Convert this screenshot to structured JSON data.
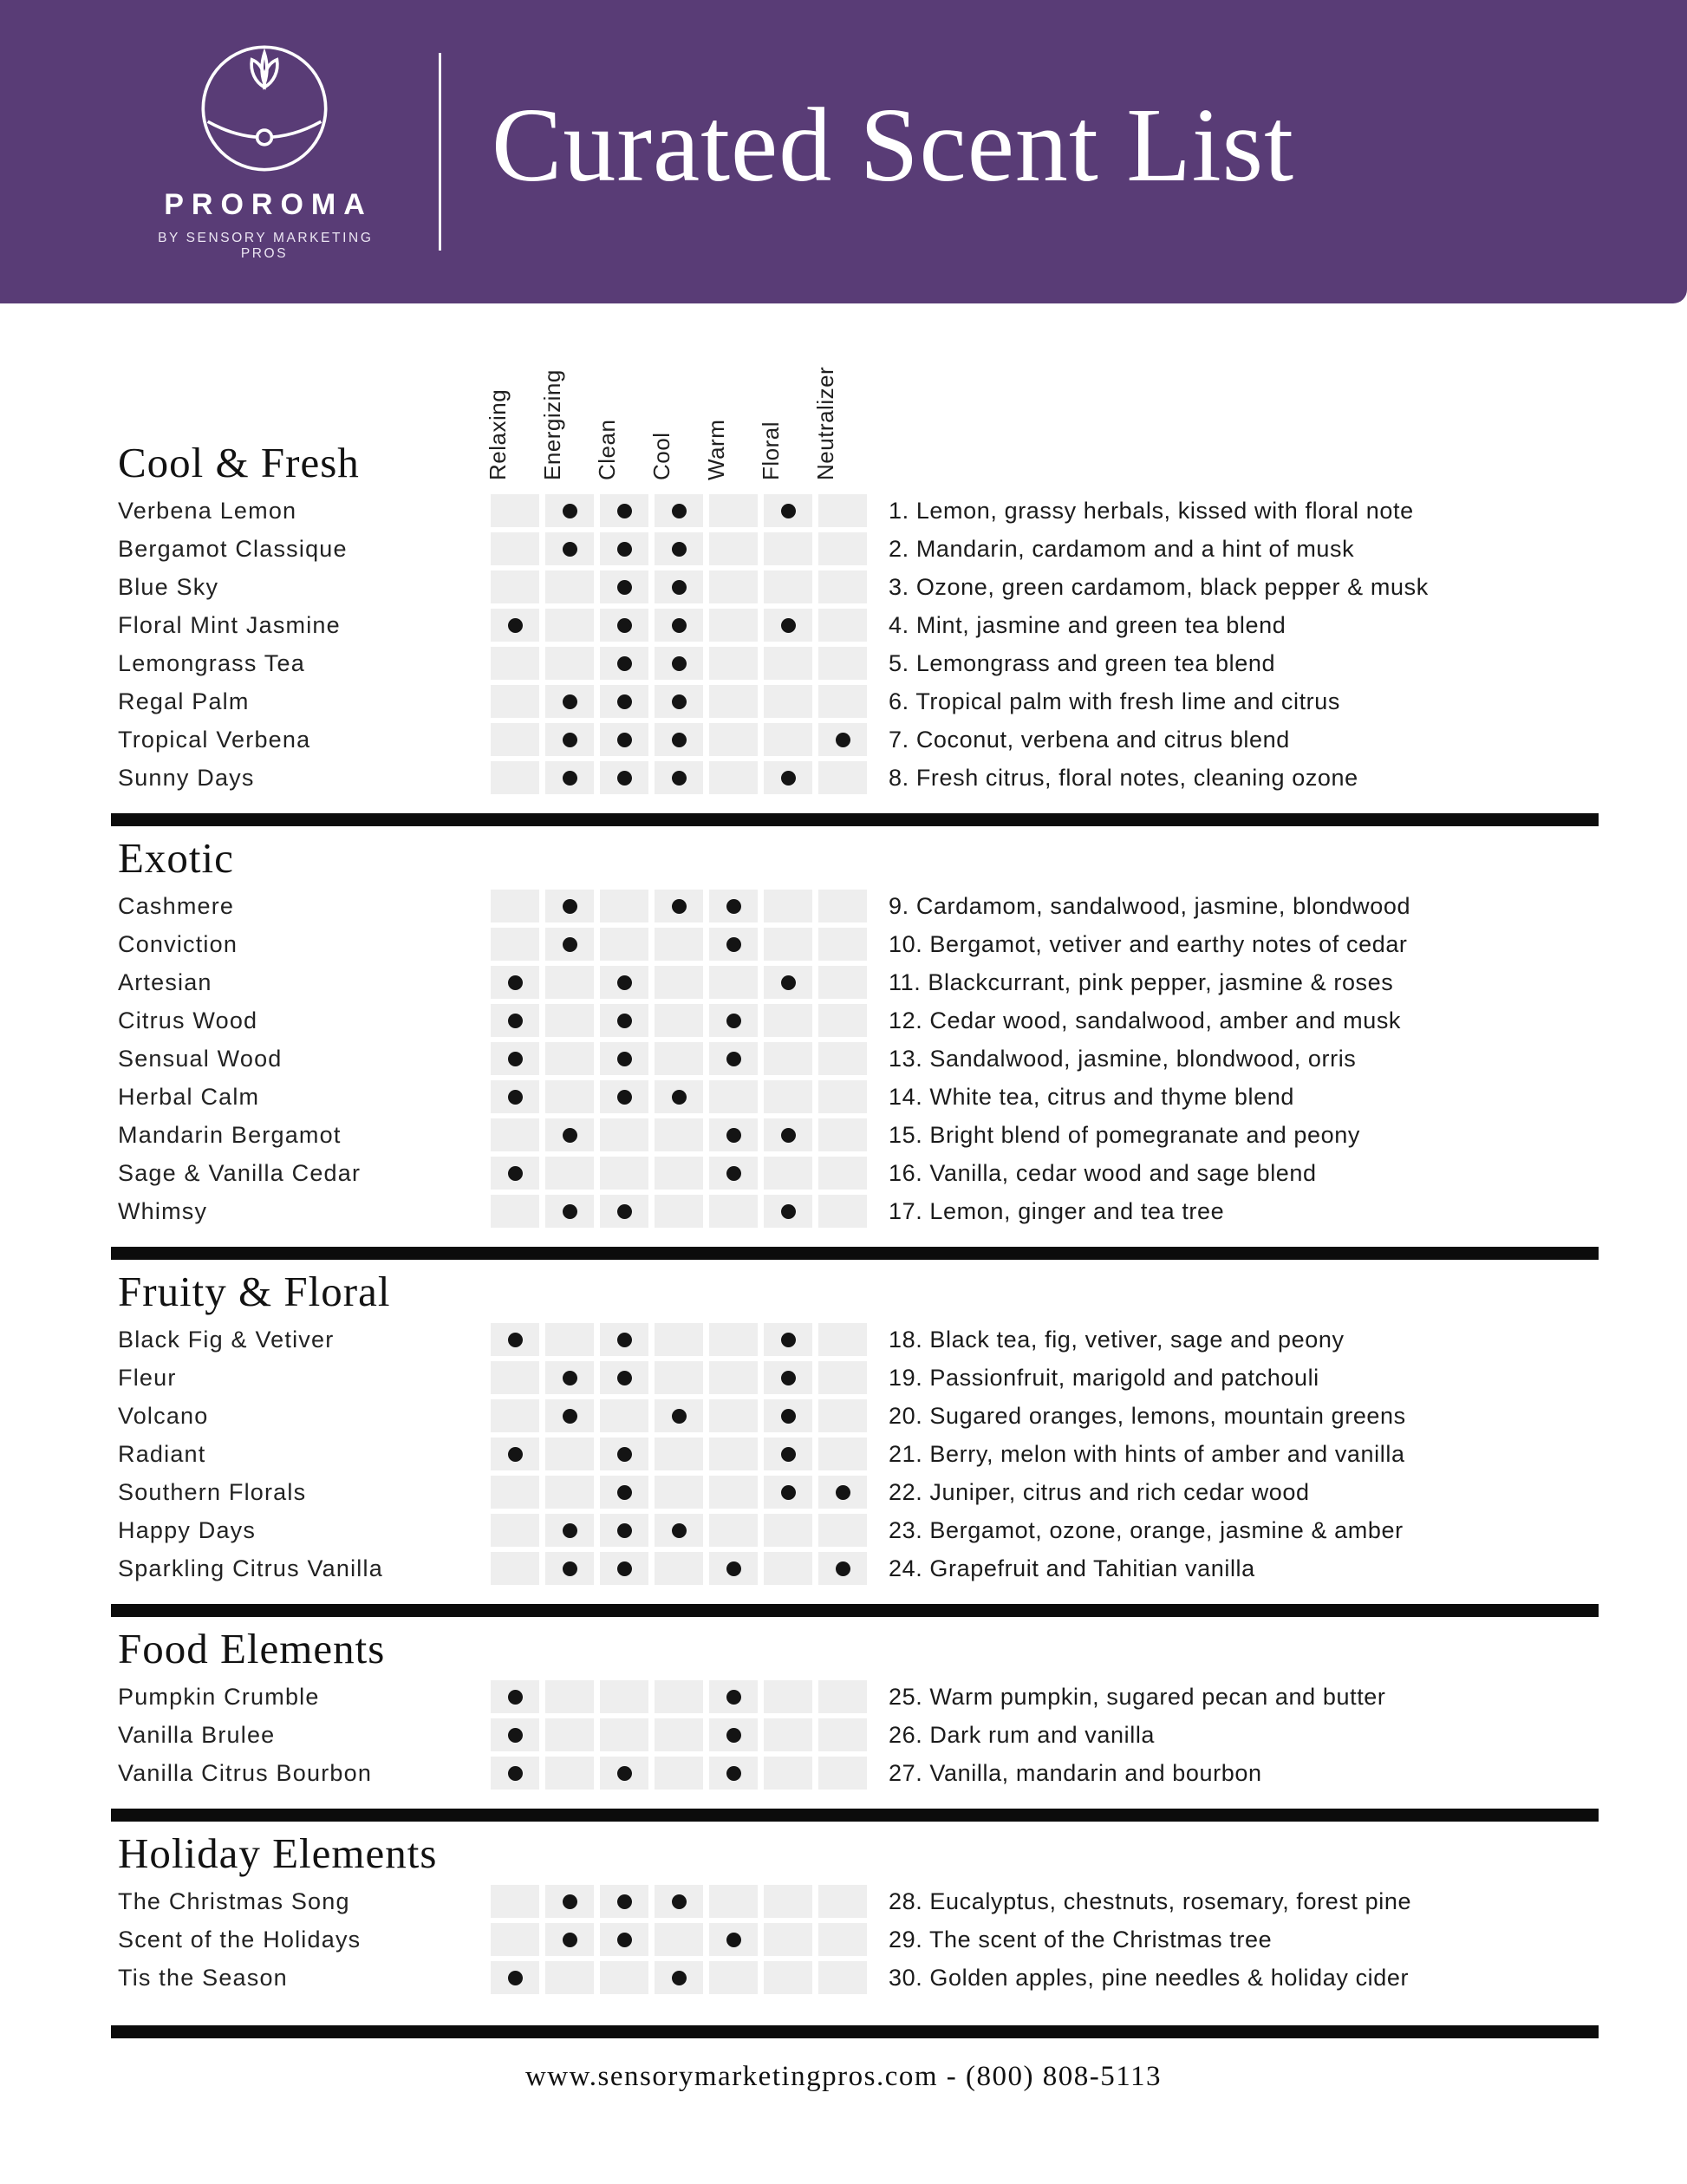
{
  "header": {
    "brand": "PROROMA",
    "tagline": "BY SENSORY MARKETING PROS",
    "title": "Curated Scent List",
    "banner_color": "#593c76"
  },
  "columns": [
    "Relaxing",
    "Energizing",
    "Clean",
    "Cool",
    "Warm",
    "Floral",
    "Neutralizer"
  ],
  "sections": [
    {
      "name": "Cool & Fresh",
      "rows": [
        {
          "name": "Verbena Lemon",
          "dots": [
            0,
            1,
            1,
            1,
            0,
            1,
            0
          ],
          "desc": "1. Lemon, grassy herbals, kissed with floral note"
        },
        {
          "name": "Bergamot Classique",
          "dots": [
            0,
            1,
            1,
            1,
            0,
            0,
            0
          ],
          "desc": "2. Mandarin, cardamom and a hint of musk"
        },
        {
          "name": "Blue Sky",
          "dots": [
            0,
            0,
            1,
            1,
            0,
            0,
            0
          ],
          "desc": "3. Ozone, green cardamom, black pepper & musk"
        },
        {
          "name": "Floral Mint Jasmine",
          "dots": [
            1,
            0,
            1,
            1,
            0,
            1,
            0
          ],
          "desc": "4. Mint, jasmine and green tea blend"
        },
        {
          "name": "Lemongrass Tea",
          "dots": [
            0,
            0,
            1,
            1,
            0,
            0,
            0
          ],
          "desc": "5. Lemongrass and green tea blend"
        },
        {
          "name": "Regal Palm",
          "dots": [
            0,
            1,
            1,
            1,
            0,
            0,
            0
          ],
          "desc": "6. Tropical palm with fresh lime and citrus"
        },
        {
          "name": "Tropical Verbena",
          "dots": [
            0,
            1,
            1,
            1,
            0,
            0,
            1
          ],
          "desc": "7. Coconut, verbena and citrus blend"
        },
        {
          "name": "Sunny Days",
          "dots": [
            0,
            1,
            1,
            1,
            0,
            1,
            0
          ],
          "desc": "8. Fresh citrus, floral notes, cleaning ozone"
        }
      ]
    },
    {
      "name": "Exotic",
      "rows": [
        {
          "name": "Cashmere",
          "dots": [
            0,
            1,
            0,
            1,
            1,
            0,
            0
          ],
          "desc": "9. Cardamom, sandalwood, jasmine, blondwood"
        },
        {
          "name": "Conviction",
          "dots": [
            0,
            1,
            0,
            0,
            1,
            0,
            0
          ],
          "desc": "10. Bergamot, vetiver and earthy notes of cedar"
        },
        {
          "name": "Artesian",
          "dots": [
            1,
            0,
            1,
            0,
            0,
            1,
            0
          ],
          "desc": "11. Blackcurrant, pink pepper, jasmine & roses"
        },
        {
          "name": "Citrus Wood",
          "dots": [
            1,
            0,
            1,
            0,
            1,
            0,
            0
          ],
          "desc": "12. Cedar wood, sandalwood, amber and musk"
        },
        {
          "name": "Sensual Wood",
          "dots": [
            1,
            0,
            1,
            0,
            1,
            0,
            0
          ],
          "desc": "13. Sandalwood, jasmine, blondwood, orris"
        },
        {
          "name": "Herbal Calm",
          "dots": [
            1,
            0,
            1,
            1,
            0,
            0,
            0
          ],
          "desc": "14. White tea, citrus and thyme blend"
        },
        {
          "name": "Mandarin Bergamot",
          "dots": [
            0,
            1,
            0,
            0,
            1,
            1,
            0
          ],
          "desc": "15. Bright blend of pomegranate and peony"
        },
        {
          "name": "Sage & Vanilla Cedar",
          "dots": [
            1,
            0,
            0,
            0,
            1,
            0,
            0
          ],
          "desc": "16. Vanilla, cedar wood and sage blend"
        },
        {
          "name": "Whimsy",
          "dots": [
            0,
            1,
            1,
            0,
            0,
            1,
            0
          ],
          "desc": "17. Lemon, ginger and tea tree"
        }
      ]
    },
    {
      "name": "Fruity & Floral",
      "rows": [
        {
          "name": "Black Fig & Vetiver",
          "dots": [
            1,
            0,
            1,
            0,
            0,
            1,
            0
          ],
          "desc": "18. Black tea, fig, vetiver, sage and peony"
        },
        {
          "name": "Fleur",
          "dots": [
            0,
            1,
            1,
            0,
            0,
            1,
            0
          ],
          "desc": "19. Passionfruit, marigold and patchouli"
        },
        {
          "name": "Volcano",
          "dots": [
            0,
            1,
            0,
            1,
            0,
            1,
            0
          ],
          "desc": "20. Sugared oranges, lemons, mountain greens"
        },
        {
          "name": "Radiant",
          "dots": [
            1,
            0,
            1,
            0,
            0,
            1,
            0
          ],
          "desc": "21. Berry, melon with hints of amber and vanilla"
        },
        {
          "name": "Southern Florals",
          "dots": [
            0,
            0,
            1,
            0,
            0,
            1,
            1
          ],
          "desc": "22. Juniper, citrus and rich cedar wood"
        },
        {
          "name": "Happy Days",
          "dots": [
            0,
            1,
            1,
            1,
            0,
            0,
            0
          ],
          "desc": "23. Bergamot, ozone, orange, jasmine & amber"
        },
        {
          "name": "Sparkling Citrus Vanilla",
          "dots": [
            0,
            1,
            1,
            0,
            1,
            0,
            1
          ],
          "desc": "24. Grapefruit and Tahitian vanilla"
        }
      ]
    },
    {
      "name": "Food Elements",
      "rows": [
        {
          "name": "Pumpkin Crumble",
          "dots": [
            1,
            0,
            0,
            0,
            1,
            0,
            0
          ],
          "desc": "25. Warm pumpkin, sugared pecan and butter"
        },
        {
          "name": "Vanilla Brulee",
          "dots": [
            1,
            0,
            0,
            0,
            1,
            0,
            0
          ],
          "desc": "26. Dark rum and vanilla"
        },
        {
          "name": "Vanilla Citrus Bourbon",
          "dots": [
            1,
            0,
            1,
            0,
            1,
            0,
            0
          ],
          "desc": "27. Vanilla, mandarin and bourbon"
        }
      ]
    },
    {
      "name": "Holiday Elements",
      "rows": [
        {
          "name": "The Christmas Song",
          "dots": [
            0,
            1,
            1,
            1,
            0,
            0,
            0
          ],
          "desc": "28. Eucalyptus, chestnuts, rosemary, forest pine"
        },
        {
          "name": "Scent of the Holidays",
          "dots": [
            0,
            1,
            1,
            0,
            1,
            0,
            0
          ],
          "desc": "29. The scent of the Christmas tree"
        },
        {
          "name": "Tis the Season",
          "dots": [
            1,
            0,
            0,
            1,
            0,
            0,
            0
          ],
          "desc": "30. Golden apples, pine needles & holiday cider"
        }
      ]
    }
  ],
  "footer": {
    "text": "www.sensorymarketingpros.com - (800) 808-5113"
  }
}
